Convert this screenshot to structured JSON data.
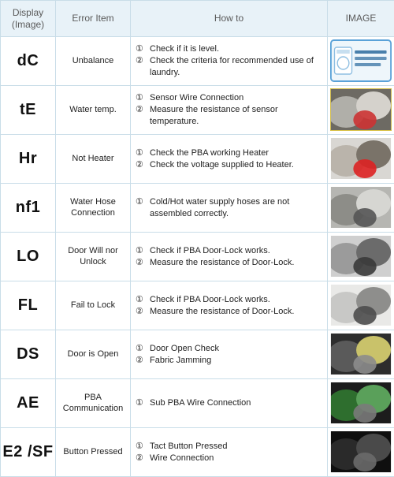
{
  "columns": {
    "display": "Display\n(Image)",
    "item": "Error Item",
    "howto": "How to",
    "image": "IMAGE"
  },
  "rows": [
    {
      "code": "dC",
      "item": "Unbalance",
      "steps": [
        "Check if it is level.",
        "Check the criteria for recommended use of laundry."
      ],
      "thumb": {
        "type": "label",
        "frame": "#5aa2d8",
        "bg": "#eef6fb",
        "iconColor": "#8fbfe2",
        "textColor": "#2a6a9c"
      }
    },
    {
      "code": "tE",
      "item": "Water temp.",
      "steps": [
        "Sensor Wire Connection",
        "Measure the resistance of sensor temperature."
      ],
      "thumb": {
        "type": "photo",
        "frame": "#d8c24a",
        "colors": [
          "#6d6a63",
          "#b0afa9",
          "#d5d2cc",
          "#c33"
        ]
      }
    },
    {
      "code": "Hr",
      "item": "Not Heater",
      "steps": [
        "Check the PBA working Heater",
        "Check the voltage supplied to Heater."
      ],
      "thumb": {
        "type": "photo",
        "frame": "#ffffff",
        "colors": [
          "#d9d7d3",
          "#bab4ab",
          "#7a7369",
          "#d22"
        ]
      }
    },
    {
      "code": "nf1",
      "item": "Water Hose Connection",
      "steps": [
        "Cold/Hot water supply hoses are not assembled correctly."
      ],
      "thumb": {
        "type": "photo",
        "frame": "#ffffff",
        "colors": [
          "#b6b6b2",
          "#8d8d88",
          "#d6d6d2",
          "#555"
        ]
      }
    },
    {
      "code": "LO",
      "item": "Door Will nor Unlock",
      "steps": [
        "Check if PBA Door-Lock works.",
        "Measure the resistance of Door-Lock."
      ],
      "thumb": {
        "type": "photo",
        "frame": "#ffffff",
        "colors": [
          "#cfcfcf",
          "#9b9b9b",
          "#6b6b6b",
          "#3a3a3a"
        ]
      }
    },
    {
      "code": "FL",
      "item": "Fail to Lock",
      "steps": [
        "Check if PBA Door-Lock works.",
        "Measure the resistance of Door-Lock."
      ],
      "thumb": {
        "type": "photo",
        "frame": "#ffffff",
        "colors": [
          "#e9e9e7",
          "#c8c8c6",
          "#8e8e8c",
          "#4d4d4d"
        ]
      }
    },
    {
      "code": "DS",
      "item": "Door is Open",
      "steps": [
        "Door Open Check",
        "Fabric Jamming"
      ],
      "thumb": {
        "type": "photo",
        "frame": "#ffffff",
        "colors": [
          "#2d2d2d",
          "#5a5a5a",
          "#c9c26a",
          "#8c8c8c"
        ]
      }
    },
    {
      "code": "AE",
      "item": "PBA Communication",
      "steps": [
        "Sub PBA Wire Connection"
      ],
      "thumb": {
        "type": "photo",
        "frame": "#ffffff",
        "colors": [
          "#1c1c1c",
          "#2e6e2e",
          "#5aa05a",
          "#7a7a7a"
        ]
      }
    },
    {
      "code": "E2 /SF",
      "item": "Button Pressed",
      "steps": [
        "Tact Button Pressed",
        "Wire Connection"
      ],
      "thumb": {
        "type": "photo",
        "frame": "#ffffff",
        "colors": [
          "#0f0f0f",
          "#2a2a2a",
          "#4a4a4a",
          "#6a6a6a"
        ]
      }
    }
  ],
  "style": {
    "header_bg": "#e8f2f8",
    "border_color": "#c9dde8",
    "header_font_size": 12,
    "code_font_size": 20,
    "body_font_size": 11,
    "circled": [
      "①",
      "②",
      "③",
      "④",
      "⑤"
    ]
  }
}
